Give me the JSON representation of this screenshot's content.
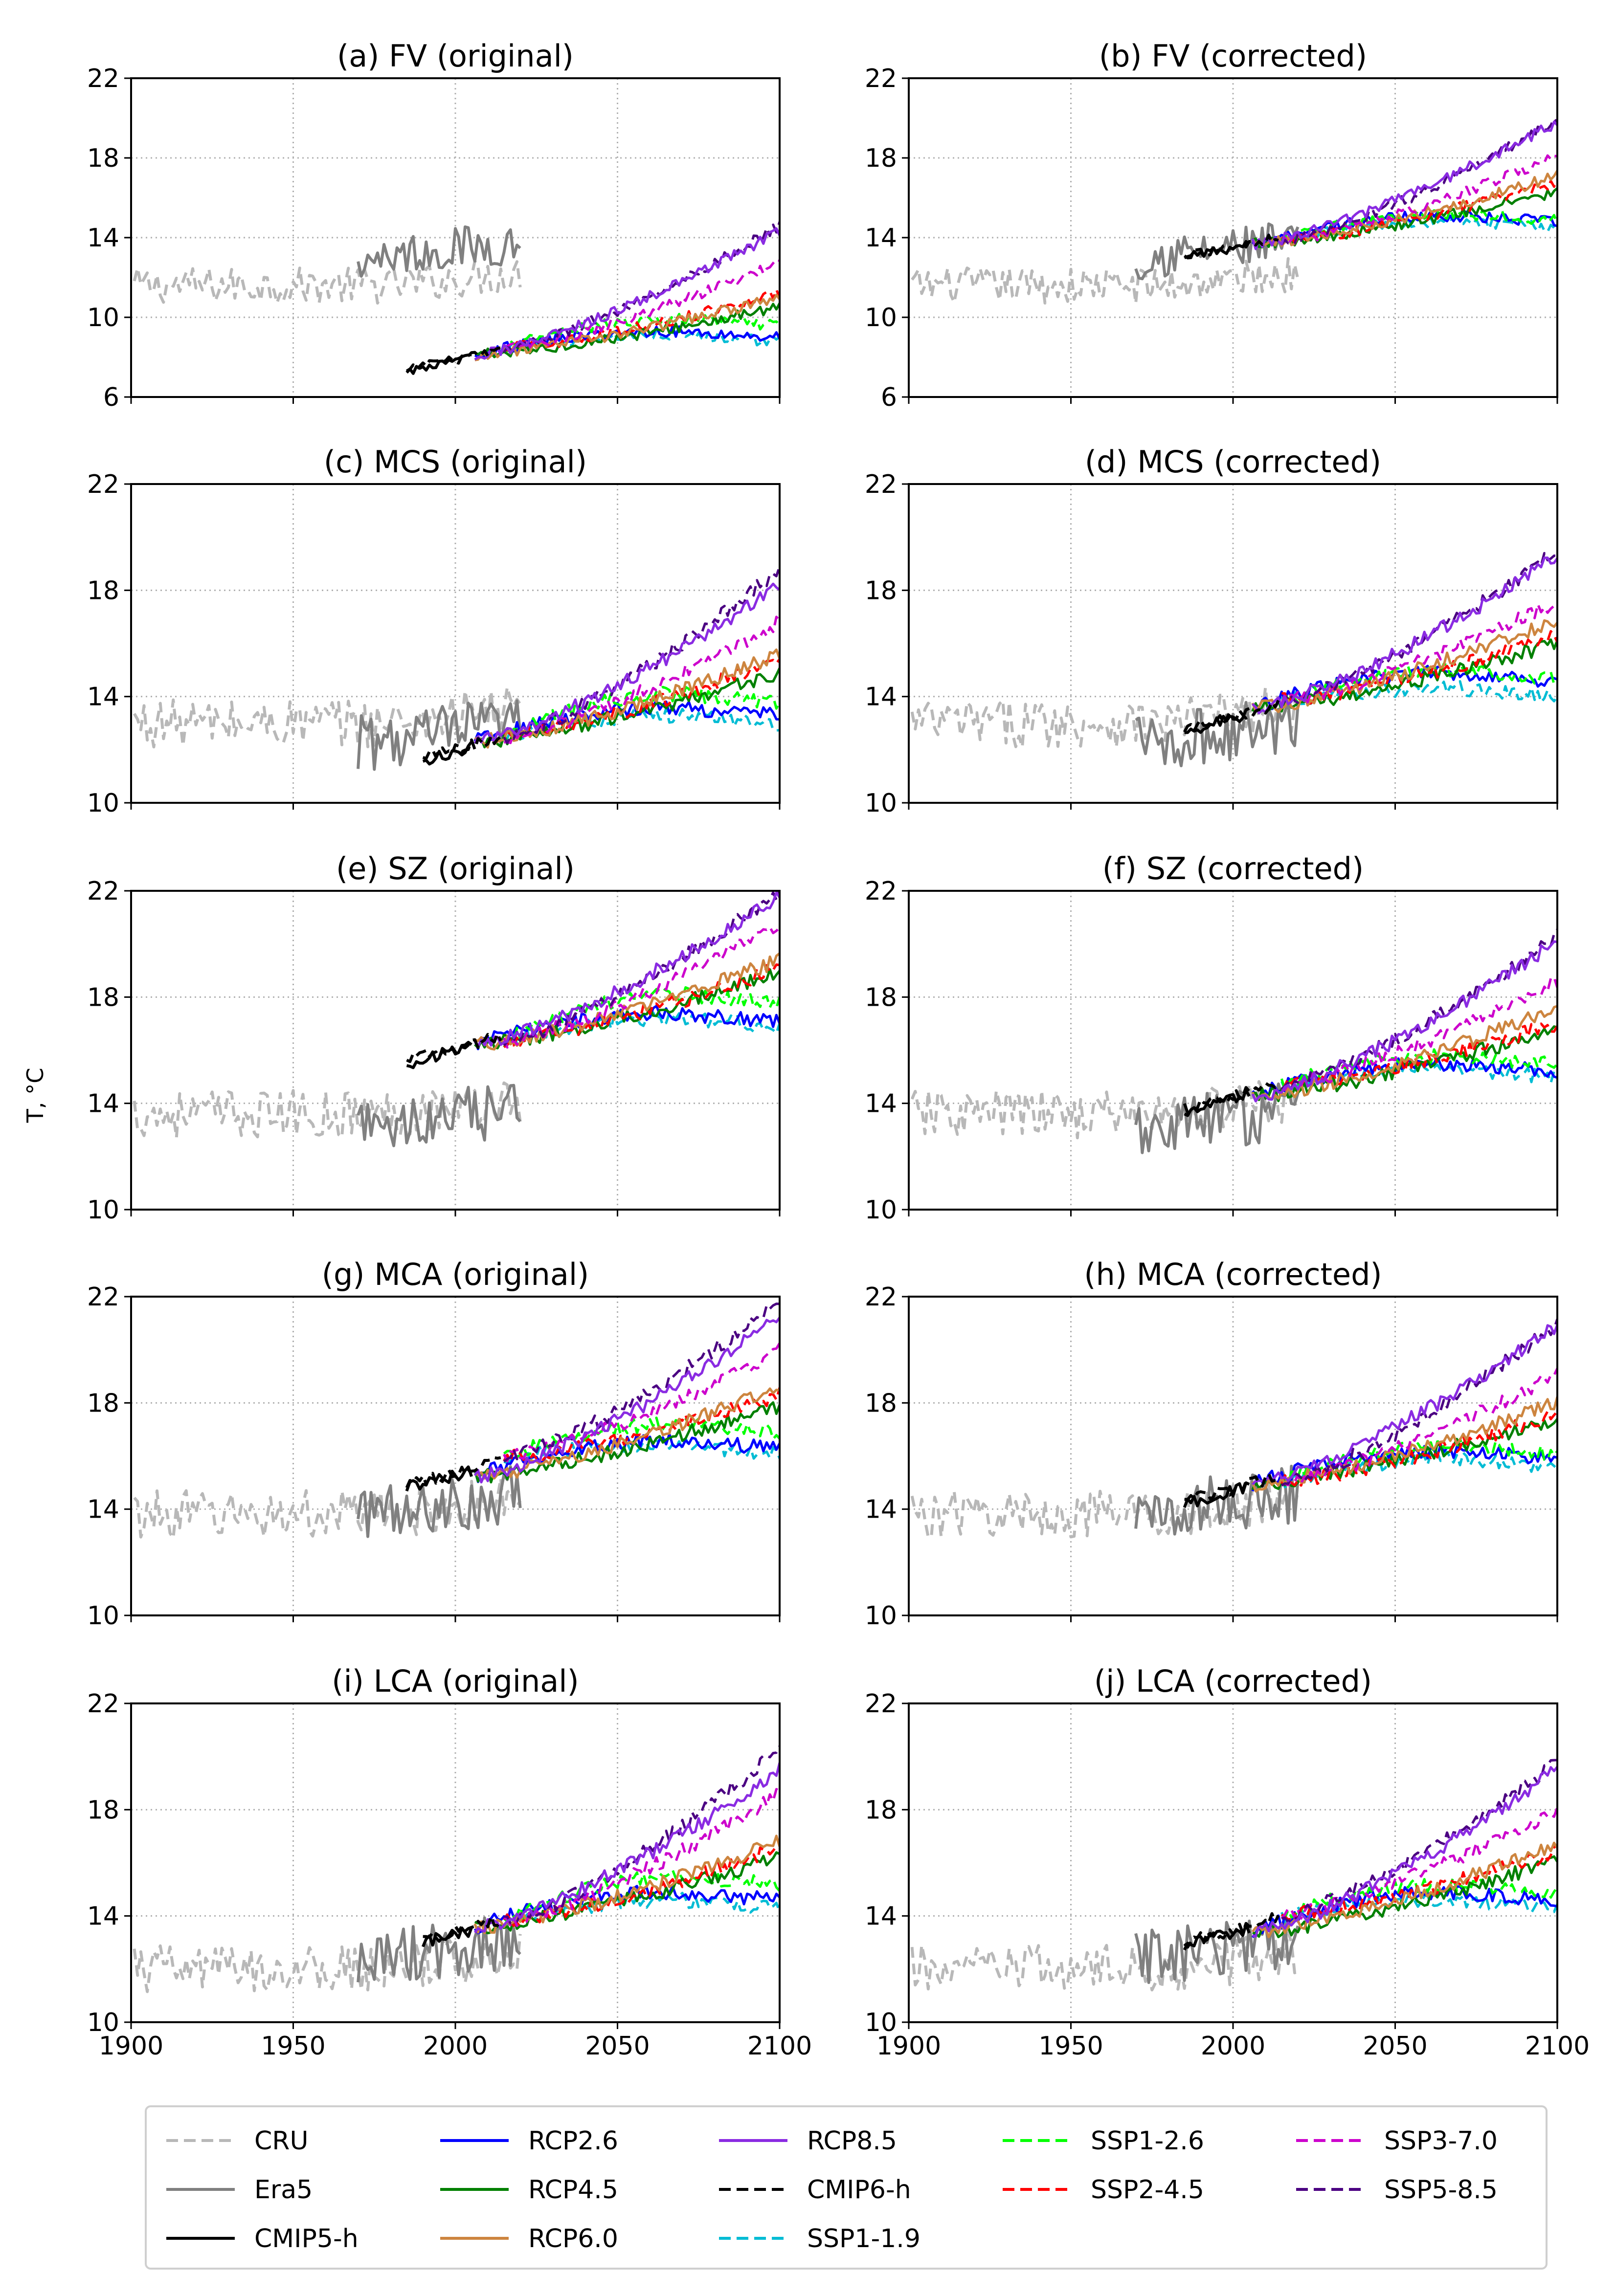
{
  "figure": {
    "ylabel": "T, °C",
    "xticks": [
      1900,
      1950,
      2000,
      2050,
      2100
    ],
    "xlim": [
      1900,
      2100
    ]
  },
  "legend": {
    "entries": [
      {
        "key": "CRU",
        "label": "CRU",
        "color": "#b8b8b8",
        "dashed": true
      },
      {
        "key": "ERA5",
        "label": "Era5",
        "color": "#808080",
        "dashed": false
      },
      {
        "key": "CMIP5H",
        "label": "CMIP5-h",
        "color": "#000000",
        "dashed": false
      },
      {
        "key": "RCP26",
        "label": "RCP2.6",
        "color": "#0000ff",
        "dashed": false
      },
      {
        "key": "RCP45",
        "label": "RCP4.5",
        "color": "#008000",
        "dashed": false
      },
      {
        "key": "RCP60",
        "label": "RCP6.0",
        "color": "#cd853f",
        "dashed": false
      },
      {
        "key": "RCP85",
        "label": "RCP8.5",
        "color": "#8a2be2",
        "dashed": false
      },
      {
        "key": "CMIP6H",
        "label": "CMIP6-h",
        "color": "#000000",
        "dashed": true
      },
      {
        "key": "SSP119",
        "label": "SSP1-1.9",
        "color": "#00bcd4",
        "dashed": true
      },
      {
        "key": "SSP126",
        "label": "SSP1-2.6",
        "color": "#00ff00",
        "dashed": true
      },
      {
        "key": "SSP245",
        "label": "SSP2-4.5",
        "color": "#ff0000",
        "dashed": true
      },
      {
        "key": "SSP370",
        "label": "SSP3-7.0",
        "color": "#cc00cc",
        "dashed": true
      },
      {
        "key": "SSP585",
        "label": "SSP5-8.5",
        "color": "#4b0082",
        "dashed": true
      }
    ]
  },
  "chart_data": [
    {
      "type": "line",
      "title": "(a) FV (original)",
      "ylim": [
        6,
        22
      ],
      "yticks": [
        6,
        10,
        14,
        18,
        22
      ],
      "cru": 11.6,
      "era5": 13.0,
      "hist_start": 1985,
      "hist_base": 7.3,
      "ends": {
        "RCP26": 9.0,
        "RCP45": 10.5,
        "RCP60": 11.0,
        "RCP85": 14.3,
        "SSP119": 8.8,
        "SSP126": 9.6,
        "SSP245": 11.2,
        "SSP370": 12.8,
        "SSP585": 14.6
      }
    },
    {
      "type": "line",
      "title": "(b) FV (corrected)",
      "ylim": [
        6,
        22
      ],
      "yticks": [
        6,
        10,
        14,
        18,
        22
      ],
      "cru": 11.6,
      "era5": 13.0,
      "hist_start": 1985,
      "hist_base": 13.0,
      "ends": {
        "RCP26": 14.8,
        "RCP45": 16.3,
        "RCP60": 17.1,
        "RCP85": 19.8,
        "SSP119": 14.5,
        "SSP126": 14.9,
        "SSP245": 16.8,
        "SSP370": 18.1,
        "SSP585": 19.9
      }
    },
    {
      "type": "line",
      "title": "(c) MCS (original)",
      "ylim": [
        10,
        22
      ],
      "yticks": [
        10,
        14,
        18,
        22
      ],
      "cru": 13.0,
      "era5": 12.2,
      "hist_start": 1990,
      "hist_base": 11.6,
      "ends": {
        "RCP26": 13.3,
        "RCP45": 14.9,
        "RCP60": 15.6,
        "RCP85": 18.2,
        "SSP119": 13.0,
        "SSP126": 13.8,
        "SSP245": 15.4,
        "SSP370": 16.8,
        "SSP585": 18.8
      }
    },
    {
      "type": "line",
      "title": "(d) MCS (corrected)",
      "ylim": [
        10,
        22
      ],
      "yticks": [
        10,
        14,
        18,
        22
      ],
      "cru": 13.0,
      "era5": 12.2,
      "hist_start": 1985,
      "hist_base": 12.7,
      "ends": {
        "RCP26": 14.6,
        "RCP45": 16.0,
        "RCP60": 16.9,
        "RCP85": 19.3,
        "SSP119": 14.0,
        "SSP126": 14.7,
        "SSP245": 16.3,
        "SSP370": 17.6,
        "SSP585": 19.5
      }
    },
    {
      "type": "line",
      "title": "(e) SZ (original)",
      "ylim": [
        10,
        22
      ],
      "yticks": [
        10,
        14,
        18,
        22
      ],
      "cru": 13.6,
      "era5": 13.0,
      "hist_start": 1985,
      "hist_base": 15.5,
      "ends": {
        "RCP26": 17.1,
        "RCP45": 18.9,
        "RCP60": 19.4,
        "RCP85": 21.8,
        "SSP119": 16.9,
        "SSP126": 17.8,
        "SSP245": 19.1,
        "SSP370": 20.8,
        "SSP585": 22.0
      }
    },
    {
      "type": "line",
      "title": "(f) SZ (corrected)",
      "ylim": [
        10,
        22
      ],
      "yticks": [
        10,
        14,
        18,
        22
      ],
      "cru": 13.6,
      "era5": 13.0,
      "hist_start": 1985,
      "hist_base": 13.7,
      "ends": {
        "RCP26": 15.2,
        "RCP45": 16.8,
        "RCP60": 17.6,
        "RCP85": 20.1,
        "SSP119": 15.0,
        "SSP126": 15.5,
        "SSP245": 17.0,
        "SSP370": 18.6,
        "SSP585": 20.3
      }
    },
    {
      "type": "line",
      "title": "(g) MCA (original)",
      "ylim": [
        10,
        22
      ],
      "yticks": [
        10,
        14,
        18,
        22
      ],
      "cru": 13.8,
      "era5": 13.8,
      "hist_start": 1985,
      "hist_base": 14.8,
      "ends": {
        "RCP26": 16.3,
        "RCP45": 17.9,
        "RCP60": 18.6,
        "RCP85": 21.2,
        "SSP119": 16.1,
        "SSP126": 16.9,
        "SSP245": 18.3,
        "SSP370": 20.0,
        "SSP585": 21.8
      }
    },
    {
      "type": "line",
      "title": "(h) MCA (corrected)",
      "ylim": [
        10,
        22
      ],
      "yticks": [
        10,
        14,
        18,
        22
      ],
      "cru": 13.8,
      "era5": 13.8,
      "hist_start": 1985,
      "hist_base": 14.2,
      "ends": {
        "RCP26": 15.9,
        "RCP45": 17.4,
        "RCP60": 18.0,
        "RCP85": 20.9,
        "SSP119": 15.6,
        "SSP126": 16.1,
        "SSP245": 17.6,
        "SSP370": 19.1,
        "SSP585": 21.0
      }
    },
    {
      "type": "line",
      "title": "(i) LCA (original)",
      "ylim": [
        10,
        22
      ],
      "yticks": [
        10,
        14,
        18,
        22
      ],
      "cru": 12.0,
      "era5": 12.4,
      "hist_start": 1990,
      "hist_base": 13.0,
      "ends": {
        "RCP26": 14.6,
        "RCP45": 16.2,
        "RCP60": 16.8,
        "RCP85": 19.5,
        "SSP119": 14.3,
        "SSP126": 15.2,
        "SSP245": 16.6,
        "SSP370": 18.6,
        "SSP585": 20.3
      }
    },
    {
      "type": "line",
      "title": "(j) LCA (corrected)",
      "ylim": [
        10,
        22
      ],
      "yticks": [
        10,
        14,
        18,
        22
      ],
      "cru": 12.0,
      "era5": 12.4,
      "hist_start": 1985,
      "hist_base": 12.9,
      "ends": {
        "RCP26": 14.6,
        "RCP45": 16.1,
        "RCP60": 16.7,
        "RCP85": 19.5,
        "SSP119": 14.3,
        "SSP126": 14.9,
        "SSP245": 16.4,
        "SSP370": 18.0,
        "SSP585": 19.8
      }
    }
  ]
}
